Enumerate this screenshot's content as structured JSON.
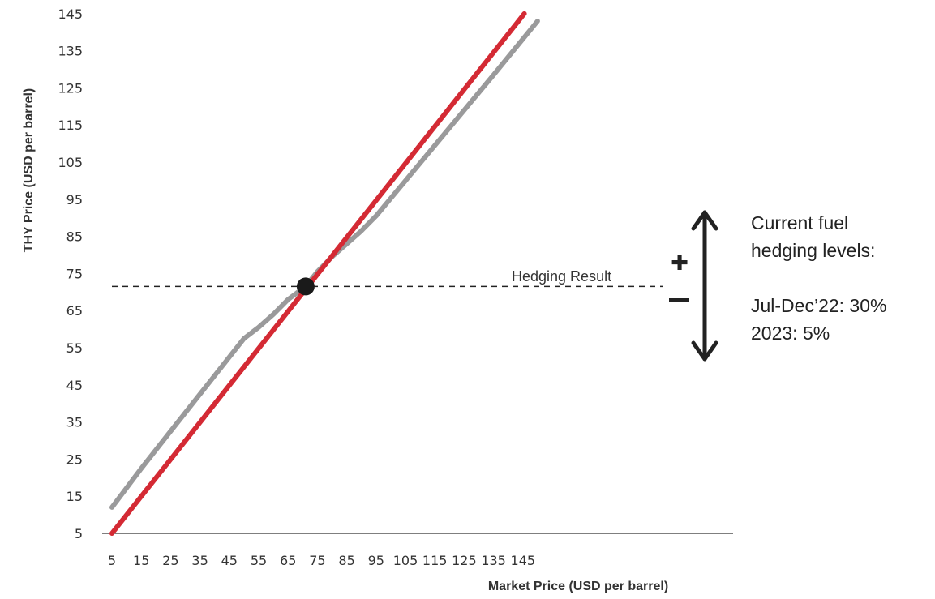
{
  "chart_data": {
    "type": "line",
    "xlabel": "Market Price (USD per barrel)",
    "ylabel": "THY Price (USD per barrel)",
    "xlim": [
      5,
      150
    ],
    "ylim": [
      5,
      145
    ],
    "xticks": [
      "5",
      "15",
      "25",
      "35",
      "45",
      "55",
      "65",
      "75",
      "85",
      "95",
      "105",
      "115",
      "125",
      "135",
      "145"
    ],
    "yticks": [
      "5",
      "15",
      "25",
      "35",
      "45",
      "55",
      "65",
      "75",
      "85",
      "95",
      "105",
      "115",
      "125",
      "135",
      "145"
    ],
    "series": [
      {
        "color": "#d42a34",
        "x": [
          5,
          145.5
        ],
        "y": [
          5,
          145
        ]
      },
      {
        "color": "#9a9a9b",
        "x": [
          5,
          15,
          25,
          35,
          45,
          50,
          55,
          60,
          65,
          71,
          75,
          80,
          85,
          90,
          95,
          105,
          115,
          125,
          135,
          150
        ],
        "y": [
          12,
          22.5,
          32.5,
          42.5,
          52.5,
          57.5,
          60.5,
          64,
          68,
          71.5,
          75.5,
          79.5,
          83,
          86.5,
          90.5,
          100,
          109.5,
          119,
          128.5,
          143
        ]
      }
    ],
    "hedging_line": {
      "y": 71.5,
      "x_start": 5,
      "x_end": 140
    },
    "intersection_point": {
      "x": 71,
      "y": 71.5
    },
    "annotation": "Hedging Result",
    "plus_label": "✚",
    "minus_label": "–",
    "grid": false
  },
  "side_text": {
    "line1": "Current fuel",
    "line2": "hedging levels:",
    "line3": "Jul-Dec’22: 30%",
    "line4": "2023: 5%"
  }
}
